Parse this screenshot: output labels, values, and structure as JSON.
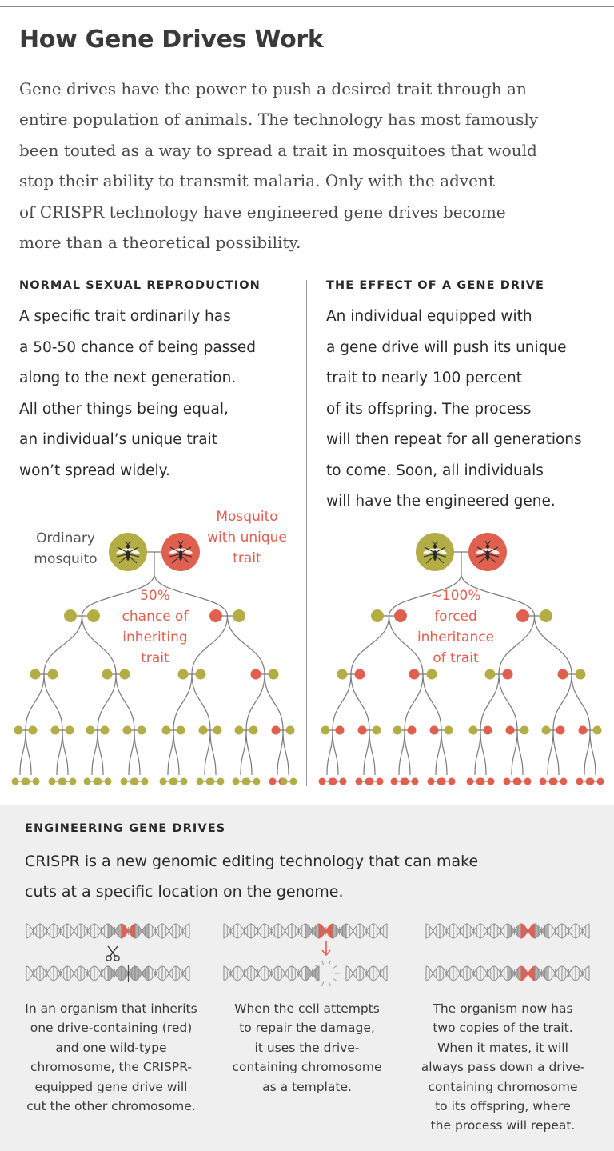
{
  "title": "How Gene Drives Work",
  "intro_lines": [
    "Gene drives have the power to push a desired trait through an",
    "entire population of animals. The technology has most famously",
    "been touted as a way to spread a trait in mosquitoes that would",
    "stop their ability to transmit malaria. Only with the advent",
    "of CRISPR technology have engineered gene drives become",
    "more than a theoretical possibility."
  ],
  "normal": {
    "heading": "NORMAL SEXUAL REPRODUCTION",
    "lines": [
      "A specific trait ordinarily has",
      "a 50-50 chance of being passed",
      "along to the next generation.",
      "All other things being equal,",
      "an individual’s unique trait",
      "won’t spread widely."
    ],
    "ordinary_label": [
      "Ordinary",
      "mosquito"
    ],
    "unique_label": [
      "Mosquito",
      "with unique",
      "trait"
    ],
    "center_label": [
      "50%",
      "chance of",
      "inheriting",
      "trait"
    ]
  },
  "drive": {
    "heading": "THE EFFECT OF A GENE DRIVE",
    "lines": [
      "An individual equipped with",
      "a gene drive will push its unique",
      "trait to nearly 100 percent",
      "of its offspring. The process",
      "will then repeat for all generations",
      "to come. Soon, all individuals",
      "will have the engineered gene."
    ],
    "center_label": [
      "~100%",
      "forced",
      "inheritance",
      "of trait"
    ]
  },
  "engineering": {
    "heading": "ENGINEERING GENE DRIVES",
    "lines": [
      "CRISPR is a new genomic editing technology that can make",
      "cuts at a specific location on the genome."
    ],
    "captions": [
      [
        "In an organism that inherits",
        "one drive-containing (red)",
        "and one wild-type",
        "chromosome, the CRISPR-",
        "equipped gene drive will",
        "cut the other chromosome."
      ],
      [
        "When the cell attempts",
        "to repair the damage,",
        "it uses the drive-",
        "containing chromosome",
        "as a template."
      ],
      [
        "The organism now has",
        "two copies of the trait.",
        "When it mates, it will",
        "always pass down a drive-",
        "containing chromosome",
        "to its offspring, where",
        "the process will repeat."
      ]
    ]
  },
  "colors": {
    "olive": "#b3ad45",
    "red": "#e0604f",
    "line": "#7a7a7a",
    "panel": "#efefef"
  },
  "icons": [
    "mosquito-icon",
    "scissors-icon",
    "down-arrow-icon",
    "break-burst-icon"
  ],
  "trees": {
    "normal": {
      "gen1": [
        "olive",
        "olive",
        "red",
        "olive"
      ],
      "gen2": [
        "olive",
        "olive",
        "olive",
        "olive",
        "olive",
        "olive",
        "red",
        "olive"
      ],
      "gen3": [
        "olive",
        "olive",
        "olive",
        "olive",
        "olive",
        "olive",
        "olive",
        "olive",
        "olive",
        "olive",
        "olive",
        "olive",
        "olive",
        "olive",
        "red",
        "olive"
      ],
      "gen4": [
        "olive",
        "olive",
        "olive",
        "olive",
        "olive",
        "olive",
        "olive",
        "olive",
        "olive",
        "olive",
        "olive",
        "olive",
        "olive",
        "olive",
        "red",
        "olive"
      ]
    },
    "drive": {
      "gen1": [
        "olive",
        "red",
        "red",
        "olive"
      ],
      "gen2": [
        "olive",
        "red",
        "red",
        "olive",
        "olive",
        "red",
        "red",
        "olive"
      ],
      "gen3": [
        "olive",
        "red",
        "red",
        "olive",
        "olive",
        "red",
        "red",
        "olive",
        "olive",
        "red",
        "red",
        "olive",
        "olive",
        "red",
        "red",
        "olive"
      ],
      "gen4": [
        "red",
        "red",
        "red",
        "red",
        "red",
        "red",
        "red",
        "red",
        "red",
        "red",
        "red",
        "red",
        "red",
        "red",
        "red",
        "red"
      ]
    }
  },
  "dna": {
    "panel1": {
      "top": "red",
      "bottom": "cut"
    },
    "panel2": {
      "top": "red",
      "bottom": "broken"
    },
    "panel3": {
      "top": "red",
      "bottom": "red"
    }
  }
}
